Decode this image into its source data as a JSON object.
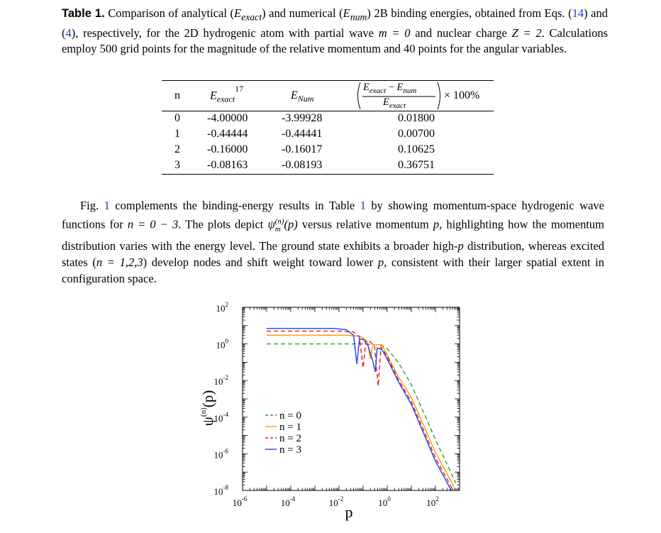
{
  "caption": {
    "label": "Table 1.",
    "text_a": " Comparison of analytical (",
    "e_exact_sym": "E",
    "e_exact_sub": "exact",
    "text_b": ") and numerical (",
    "e_num_sym": "E",
    "e_num_sub": "num",
    "text_c": ") 2B binding energies, obtained from Eqs. (",
    "eq1": "14",
    "text_d": ") and (",
    "eq2": "4",
    "text_e": "), respectively, for the 2D hydrogenic atom with partial wave ",
    "m_eq": "m = 0",
    "text_f": " and nuclear charge ",
    "z_eq": "Z = 2",
    "text_g": ". Calculations employ 500 grid points for the magnitude of the relative momentum and 40 points for the angular variables."
  },
  "table": {
    "headers": {
      "n": "n",
      "exact_sym": "E",
      "exact_sub": "exact",
      "exact_ref": "17",
      "num_sym": "E",
      "num_sub": "Num",
      "frac_num_a": "E",
      "frac_num_a_sub": "exact",
      "frac_minus": " − ",
      "frac_num_b": "E",
      "frac_num_b_sub": "num",
      "frac_den": "E",
      "frac_den_sub": "exact",
      "percent": "× 100%"
    },
    "rows": [
      {
        "n": "0",
        "exact": "-4.00000",
        "num": "-3.99928",
        "pct": "0.01800"
      },
      {
        "n": "1",
        "exact": "-0.44444",
        "num": "-0.44441",
        "pct": "0.00700"
      },
      {
        "n": "2",
        "exact": "-0.16000",
        "num": "-0.16017",
        "pct": "0.10625"
      },
      {
        "n": "3",
        "exact": "-0.08163",
        "num": "-0.08193",
        "pct": "0.36751"
      }
    ]
  },
  "paragraph": {
    "a": "Fig. ",
    "fig_ref": "1",
    "b": " complements the binding-energy results in Table ",
    "tab_ref": "1",
    "c": " by showing momentum-space hydrogenic wave functions for ",
    "n_range": "n = 0 − 3",
    "d": ". The plots depict ",
    "psi": "ψ",
    "psi_sub": "m",
    "psi_sup": "(n)",
    "psi_arg": "(p)",
    "e": " versus relative momentum ",
    "p_sym": "p",
    "f": ", highlighting how the momentum distribution varies with the energy level. The ground state exhibits a broader high-",
    "p_sym2": "p",
    "g": " distribution, whereas excited states (",
    "n_set": "n = 1,2,3",
    "h": ") develop nodes and shift weight toward lower ",
    "p_sym3": "p",
    "i": ", consistent with their larger spatial extent in configuration space."
  },
  "chart_data": {
    "type": "line",
    "xlabel": "p",
    "ylabel": "ψ(n)(p)",
    "xscale": "log",
    "yscale": "log",
    "xlim": [
      1e-06,
      1000
    ],
    "ylim": [
      1e-08,
      100
    ],
    "x_ticks": [
      {
        "base": "10",
        "exp": "-6"
      },
      {
        "base": "10",
        "exp": "-4"
      },
      {
        "base": "10",
        "exp": "-2"
      },
      {
        "base": "10",
        "exp": "0"
      },
      {
        "base": "10",
        "exp": "2"
      }
    ],
    "y_ticks": [
      {
        "base": "10",
        "exp": "2"
      },
      {
        "base": "10",
        "exp": "0"
      },
      {
        "base": "10",
        "exp": "-2"
      },
      {
        "base": "10",
        "exp": "-4"
      },
      {
        "base": "10",
        "exp": "-6"
      },
      {
        "base": "10",
        "exp": "-8"
      }
    ],
    "legend_position": "lower-left",
    "series": [
      {
        "name": "n = 0",
        "color": "#2ca02c",
        "dash": "dashed",
        "plateau": 1.0,
        "points": [
          [
            1e-05,
            1.0
          ],
          [
            0.1,
            1.0
          ],
          [
            0.6,
            0.85
          ],
          [
            1.0,
            0.55
          ],
          [
            3,
            0.09
          ],
          [
            10,
            0.006
          ],
          [
            100,
            6e-06
          ],
          [
            700,
            2.5e-08
          ]
        ]
      },
      {
        "name": "n = 1",
        "color": "#ff9900",
        "dash": "solid",
        "plateau": 3.0,
        "points": [
          [
            1e-05,
            3.0
          ],
          [
            0.02,
            3.0
          ],
          [
            0.08,
            2.6
          ],
          [
            0.15,
            1.4
          ],
          [
            0.2,
            0.15
          ],
          [
            0.25,
            0.9
          ],
          [
            0.6,
            0.9
          ],
          [
            1.0,
            0.25
          ],
          [
            3,
            0.015
          ],
          [
            10,
            0.0012
          ],
          [
            100,
            1.2e-06
          ],
          [
            600,
            1.5e-08
          ]
        ]
      },
      {
        "name": "n = 2",
        "color": "#e31a1c",
        "dash": "dashed",
        "plateau": 5.0,
        "points": [
          [
            1e-05,
            5.0
          ],
          [
            0.01,
            5.0
          ],
          [
            0.04,
            4.5
          ],
          [
            0.07,
            2.5
          ],
          [
            0.1,
            0.05
          ],
          [
            0.13,
            1.5
          ],
          [
            0.2,
            1.3
          ],
          [
            0.3,
            0.7
          ],
          [
            0.42,
            0.005
          ],
          [
            0.55,
            0.7
          ],
          [
            1.0,
            0.2
          ],
          [
            3,
            0.01
          ],
          [
            10,
            0.0007
          ],
          [
            100,
            6e-07
          ],
          [
            500,
            1.2e-08
          ]
        ]
      },
      {
        "name": "n = 3",
        "color": "#1f3fff",
        "dash": "solid",
        "plateau": 7.0,
        "points": [
          [
            1e-05,
            7.0
          ],
          [
            0.006,
            7.0
          ],
          [
            0.02,
            6.0
          ],
          [
            0.04,
            3.0
          ],
          [
            0.055,
            0.08
          ],
          [
            0.07,
            1.8
          ],
          [
            0.1,
            1.8
          ],
          [
            0.16,
            0.8
          ],
          [
            0.25,
            0.12
          ],
          [
            0.32,
            0.03
          ],
          [
            0.38,
            0.6
          ],
          [
            0.6,
            0.5
          ],
          [
            1.0,
            0.15
          ],
          [
            3,
            0.008
          ],
          [
            10,
            0.0005
          ],
          [
            100,
            4e-07
          ],
          [
            450,
            1e-08
          ]
        ]
      }
    ]
  }
}
